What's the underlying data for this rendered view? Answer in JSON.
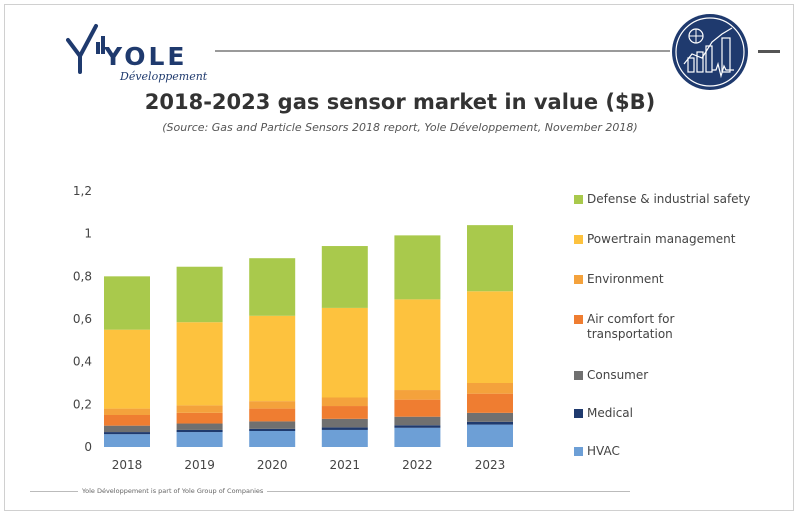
{
  "logo": {
    "name": "YOLE",
    "sub": "Développement"
  },
  "title": "2018-2023 gas sensor market in value ($B)",
  "subtitle": "(Source: Gas and Particle Sensors 2018 report, Yole Développement, November 2018)",
  "footer": "Yole Développement is part of Yole Group of Companies",
  "colors": {
    "brand": "#1f3a6e"
  },
  "icons": [
    "yole-logo-icon",
    "market-chart-badge-icon"
  ],
  "chart_data": {
    "type": "bar",
    "stacked": true,
    "title": "2018-2023 gas sensor market in value ($B)",
    "categories": [
      "2018",
      "2019",
      "2020",
      "2021",
      "2022",
      "2023"
    ],
    "ylim": [
      0,
      1.2
    ],
    "yticks": [
      "0",
      "0,2",
      "0,4",
      "0,6",
      "0,8",
      "1",
      "1,2"
    ],
    "ytick_values": [
      0,
      0.2,
      0.4,
      0.6,
      0.8,
      1.0,
      1.2
    ],
    "grid": false,
    "legend_position": "right",
    "series": [
      {
        "name": "HVAC",
        "color": "#6d9fd6",
        "values": [
          0.06,
          0.07,
          0.075,
          0.08,
          0.09,
          0.105
        ]
      },
      {
        "name": "Medical",
        "color": "#1f3a6e",
        "values": [
          0.01,
          0.01,
          0.01,
          0.012,
          0.012,
          0.013
        ]
      },
      {
        "name": "Consumer",
        "color": "#707070",
        "values": [
          0.03,
          0.03,
          0.035,
          0.04,
          0.04,
          0.042
        ]
      },
      {
        "name": "Air comfort for transportation",
        "color": "#ef7d31",
        "values": [
          0.05,
          0.05,
          0.06,
          0.06,
          0.08,
          0.09
        ]
      },
      {
        "name": "Environment",
        "color": "#f4a23c",
        "values": [
          0.03,
          0.035,
          0.035,
          0.04,
          0.045,
          0.05
        ]
      },
      {
        "name": "Powertrain management",
        "color": "#fdc23e",
        "values": [
          0.37,
          0.39,
          0.4,
          0.42,
          0.425,
          0.43
        ]
      },
      {
        "name": "Defense & industrial safety",
        "color": "#a9c94c",
        "values": [
          0.25,
          0.26,
          0.27,
          0.29,
          0.3,
          0.31
        ]
      }
    ]
  }
}
